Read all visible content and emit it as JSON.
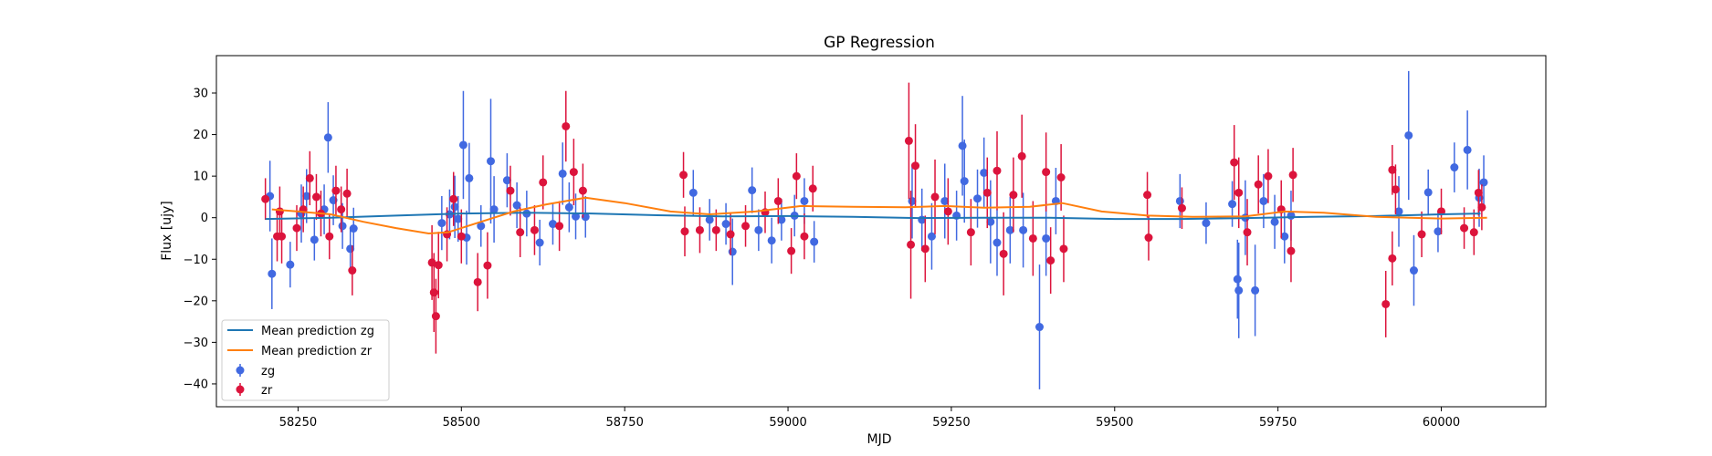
{
  "chart_data": {
    "type": "scatter",
    "title": "GP Regression",
    "xlabel": "MJD",
    "ylabel": "Flux [ujy]",
    "xlim": [
      58125,
      60160
    ],
    "ylim": [
      -45.5,
      39
    ],
    "xticks": [
      58250,
      58500,
      58750,
      59000,
      59250,
      59500,
      59750,
      60000
    ],
    "xtick_labels": [
      "58250",
      "58500",
      "58750",
      "59000",
      "59250",
      "59500",
      "59750",
      "60000"
    ],
    "yticks": [
      -40,
      -30,
      -20,
      -10,
      0,
      10,
      20,
      30
    ],
    "ytick_labels": [
      "−40",
      "−30",
      "−20",
      "−10",
      "0",
      "10",
      "20",
      "30"
    ],
    "grid": false,
    "legend_position": "bottom-left",
    "legend": [
      "Mean prediction zg",
      "Mean prediction zr",
      "zg",
      "zr"
    ],
    "colors": {
      "zg_line": "#1f77b4",
      "zr_line": "#ff7f0e",
      "zg_points": "#4169e1",
      "zr_points": "#dc143c"
    },
    "series": [
      {
        "name": "Mean prediction zg",
        "kind": "line",
        "x": [
          58200,
          58300,
          58400,
          58500,
          58600,
          58700,
          58800,
          58900,
          59000,
          59100,
          59200,
          59300,
          59400,
          59500,
          59600,
          59700,
          59800,
          59900,
          60000,
          60060
        ],
        "y": [
          -0.3,
          0.0,
          0.5,
          1.0,
          1.2,
          1.0,
          0.6,
          0.3,
          0.4,
          0.2,
          -0.1,
          0.0,
          0.0,
          -0.3,
          -0.3,
          -0.1,
          0.2,
          0.4,
          0.8,
          1.0
        ]
      },
      {
        "name": "Mean prediction zr",
        "kind": "line",
        "x": [
          58210,
          58250,
          58300,
          58350,
          58400,
          58450,
          58480,
          58530,
          58580,
          58630,
          58690,
          58750,
          58820,
          58880,
          58950,
          59020,
          59100,
          59180,
          59240,
          59300,
          59370,
          59420,
          59480,
          59550,
          59620,
          59700,
          59760,
          59820,
          59900,
          60000,
          60070
        ],
        "y": [
          2.0,
          1.5,
          0.8,
          -1.0,
          -2.5,
          -3.8,
          -3.5,
          -1.0,
          1.5,
          3.2,
          4.8,
          3.5,
          1.5,
          0.8,
          1.5,
          2.8,
          2.6,
          2.5,
          2.8,
          2.4,
          2.6,
          3.5,
          1.5,
          0.5,
          0.2,
          0.3,
          1.5,
          1.2,
          0.2,
          -0.2,
          0.0
        ]
      },
      {
        "name": "zg",
        "kind": "errorbar",
        "points": [
          [
            58207,
            5.2,
            8.5
          ],
          [
            58210,
            -13.5,
            8.5
          ],
          [
            58238,
            -11.3,
            5.5
          ],
          [
            58255,
            1.0,
            7.0
          ],
          [
            58263,
            5.2,
            6.5
          ],
          [
            58275,
            -5.3,
            5.0
          ],
          [
            58290,
            2.0,
            6.0
          ],
          [
            58296,
            19.3,
            8.5
          ],
          [
            58304,
            4.2,
            6.0
          ],
          [
            58318,
            -2.0,
            5.5
          ],
          [
            58330,
            -7.5,
            5.0
          ],
          [
            58335,
            -2.6,
            5.0
          ],
          [
            58470,
            -1.3,
            6.5
          ],
          [
            58482,
            0.8,
            6.0
          ],
          [
            58490,
            2.6,
            7.5
          ],
          [
            58495,
            -0.3,
            5.5
          ],
          [
            58503,
            17.5,
            13.0
          ],
          [
            58508,
            -4.8,
            6.5
          ],
          [
            58512,
            9.5,
            8.5
          ],
          [
            58530,
            -2.0,
            5.0
          ],
          [
            58545,
            13.6,
            15.0
          ],
          [
            58550,
            2.0,
            8.0
          ],
          [
            58570,
            9.0,
            6.5
          ],
          [
            58585,
            3.0,
            5.5
          ],
          [
            58600,
            1.0,
            5.5
          ],
          [
            58620,
            -6.0,
            5.5
          ],
          [
            58640,
            -1.5,
            5.0
          ],
          [
            58655,
            10.6,
            7.5
          ],
          [
            58665,
            2.5,
            6.0
          ],
          [
            58675,
            0.3,
            5.5
          ],
          [
            58690,
            0.2,
            5.0
          ],
          [
            58855,
            6.0,
            5.5
          ],
          [
            58880,
            -0.5,
            5.0
          ],
          [
            58905,
            -1.5,
            5.0
          ],
          [
            58915,
            -8.2,
            8.0
          ],
          [
            58945,
            6.6,
            5.5
          ],
          [
            58955,
            -3.0,
            5.0
          ],
          [
            58975,
            -5.5,
            5.5
          ],
          [
            58990,
            -0.5,
            5.0
          ],
          [
            59010,
            0.5,
            5.0
          ],
          [
            59025,
            4.0,
            5.5
          ],
          [
            59040,
            -5.8,
            5.0
          ],
          [
            59190,
            4.0,
            9.0
          ],
          [
            59205,
            -0.5,
            7.5
          ],
          [
            59220,
            -4.5,
            8.0
          ],
          [
            59240,
            4.0,
            9.0
          ],
          [
            59258,
            0.5,
            6.0
          ],
          [
            59267,
            17.3,
            12.0
          ],
          [
            59270,
            8.8,
            10.0
          ],
          [
            59290,
            4.6,
            7.0
          ],
          [
            59300,
            10.8,
            8.5
          ],
          [
            59310,
            -1.0,
            10.0
          ],
          [
            59320,
            -6.0,
            8.0
          ],
          [
            59340,
            -3.0,
            8.0
          ],
          [
            59360,
            -3.0,
            9.0
          ],
          [
            59385,
            -26.3,
            15.0
          ],
          [
            59395,
            -5.0,
            9.0
          ],
          [
            59410,
            4.0,
            8.0
          ],
          [
            59600,
            4.0,
            6.5
          ],
          [
            59640,
            -1.3,
            5.0
          ],
          [
            59680,
            3.3,
            5.5
          ],
          [
            59688,
            -14.8,
            9.5
          ],
          [
            59690,
            -17.5,
            11.5
          ],
          [
            59700,
            0.0,
            9.0
          ],
          [
            59715,
            -17.5,
            11.0
          ],
          [
            59728,
            4.0,
            6.5
          ],
          [
            59745,
            -1.0,
            6.5
          ],
          [
            59760,
            -4.5,
            6.5
          ],
          [
            59770,
            0.5,
            6.0
          ],
          [
            59935,
            1.5,
            8.5
          ],
          [
            59950,
            19.8,
            15.5
          ],
          [
            59958,
            -12.7,
            8.5
          ],
          [
            59980,
            6.1,
            5.5
          ],
          [
            59995,
            -3.3,
            5.0
          ],
          [
            60020,
            12.1,
            6.0
          ],
          [
            60040,
            16.3,
            9.5
          ],
          [
            60058,
            4.8,
            7.0
          ],
          [
            60065,
            8.5,
            6.5
          ]
        ]
      },
      {
        "name": "zr",
        "kind": "errorbar",
        "points": [
          [
            58200,
            4.5,
            5.0
          ],
          [
            58218,
            -4.5,
            6.0
          ],
          [
            58222,
            1.5,
            6.0
          ],
          [
            58225,
            -4.5,
            6.5
          ],
          [
            58248,
            -2.5,
            5.5
          ],
          [
            58258,
            2.0,
            5.5
          ],
          [
            58268,
            9.5,
            6.5
          ],
          [
            58278,
            5.0,
            5.5
          ],
          [
            58285,
            1.0,
            5.5
          ],
          [
            58298,
            -4.5,
            5.5
          ],
          [
            58308,
            6.5,
            6.0
          ],
          [
            58316,
            2.0,
            5.5
          ],
          [
            58325,
            5.8,
            6.0
          ],
          [
            58333,
            -12.7,
            6.0
          ],
          [
            58455,
            -10.8,
            9.0
          ],
          [
            58458,
            -18.0,
            9.5
          ],
          [
            58461,
            -23.7,
            9.0
          ],
          [
            58465,
            -11.4,
            8.0
          ],
          [
            58478,
            -4.0,
            6.5
          ],
          [
            58488,
            4.5,
            6.5
          ],
          [
            58500,
            -4.5,
            6.5
          ],
          [
            58525,
            -15.5,
            7.0
          ],
          [
            58540,
            -11.5,
            8.0
          ],
          [
            58575,
            6.5,
            6.0
          ],
          [
            58590,
            -3.5,
            6.0
          ],
          [
            58612,
            -3.0,
            6.0
          ],
          [
            58625,
            8.5,
            6.5
          ],
          [
            58650,
            -2.0,
            6.0
          ],
          [
            58660,
            22.0,
            8.5
          ],
          [
            58672,
            11.0,
            8.0
          ],
          [
            58686,
            6.5,
            6.5
          ],
          [
            58840,
            10.3,
            5.5
          ],
          [
            58842,
            -3.3,
            6.0
          ],
          [
            58865,
            -3.0,
            5.5
          ],
          [
            58890,
            -3.0,
            5.0
          ],
          [
            58912,
            -4.0,
            5.0
          ],
          [
            58935,
            -2.0,
            5.0
          ],
          [
            58965,
            1.3,
            5.0
          ],
          [
            58985,
            4.0,
            5.5
          ],
          [
            59005,
            -8.0,
            5.5
          ],
          [
            59013,
            10.0,
            5.5
          ],
          [
            59025,
            -4.5,
            5.5
          ],
          [
            59038,
            7.0,
            5.5
          ],
          [
            59185,
            18.5,
            14.0
          ],
          [
            59188,
            -6.5,
            13.0
          ],
          [
            59195,
            12.5,
            10.0
          ],
          [
            59210,
            -7.5,
            8.0
          ],
          [
            59225,
            5.0,
            9.0
          ],
          [
            59245,
            1.5,
            8.0
          ],
          [
            59280,
            -3.5,
            8.0
          ],
          [
            59305,
            6.0,
            8.5
          ],
          [
            59320,
            11.3,
            9.5
          ],
          [
            59330,
            -8.7,
            10.0
          ],
          [
            59345,
            5.5,
            9.0
          ],
          [
            59358,
            14.8,
            10.0
          ],
          [
            59375,
            -5.0,
            9.0
          ],
          [
            59395,
            11.0,
            9.5
          ],
          [
            59402,
            -10.3,
            8.0
          ],
          [
            59418,
            9.7,
            8.0
          ],
          [
            59422,
            -7.5,
            8.0
          ],
          [
            59550,
            5.5,
            5.5
          ],
          [
            59552,
            -4.8,
            5.5
          ],
          [
            59603,
            2.3,
            5.0
          ],
          [
            59683,
            13.3,
            9.0
          ],
          [
            59690,
            6.0,
            8.5
          ],
          [
            59703,
            -3.5,
            8.0
          ],
          [
            59720,
            8.0,
            7.0
          ],
          [
            59735,
            10.0,
            6.5
          ],
          [
            59755,
            2.0,
            7.0
          ],
          [
            59770,
            -8.0,
            7.5
          ],
          [
            59773,
            10.3,
            6.5
          ],
          [
            59915,
            -20.8,
            8.0
          ],
          [
            59925,
            -9.8,
            6.5
          ],
          [
            59930,
            6.8,
            6.0
          ],
          [
            59925,
            11.5,
            6.0
          ],
          [
            59970,
            -4.0,
            5.5
          ],
          [
            60000,
            1.5,
            5.5
          ],
          [
            60035,
            -2.5,
            5.0
          ],
          [
            60050,
            -3.5,
            5.5
          ],
          [
            60057,
            6.0,
            5.5
          ],
          [
            60062,
            2.5,
            5.5
          ]
        ]
      }
    ]
  }
}
